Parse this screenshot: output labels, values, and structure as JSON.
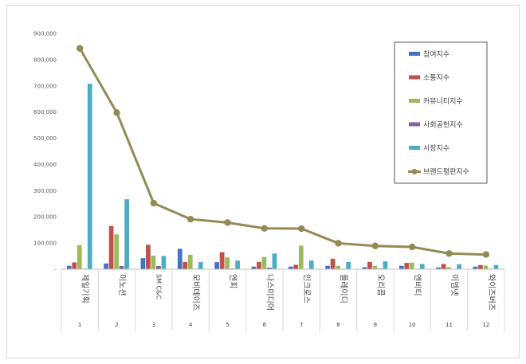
{
  "chart_data": {
    "type": "bar+line",
    "title": "",
    "xlabel": "",
    "ylabel": "",
    "ylim": [
      0,
      900000
    ],
    "yticks": [
      "-",
      "100,000",
      "200,000",
      "300,000",
      "400,000",
      "500,000",
      "600,000",
      "700,000",
      "800,000",
      "900,000"
    ],
    "legend_position": "right",
    "grid": false,
    "categories": [
      "제일기획",
      "이노션",
      "SM C&C",
      "모비데이즈",
      "엔피",
      "나스미디어",
      "인크로스",
      "플레이디",
      "오리콤",
      "엔비티",
      "이엠넷",
      "와이즈버즈"
    ],
    "ranks": [
      "1",
      "2",
      "3",
      "4",
      "5",
      "6",
      "7",
      "8",
      "9",
      "10",
      "11",
      "12"
    ],
    "series": [
      {
        "name": "참여지수",
        "color": "#4472c4",
        "values": [
          13000,
          22000,
          42000,
          78000,
          27000,
          10000,
          10000,
          13000,
          8000,
          13000,
          7000,
          10000
        ]
      },
      {
        "name": "소통지수",
        "color": "#c0504d",
        "values": [
          26000,
          165000,
          93000,
          28000,
          65000,
          28000,
          17000,
          40000,
          28000,
          24000,
          20000,
          16000
        ]
      },
      {
        "name": "커뮤니티지수",
        "color": "#9bbb59",
        "values": [
          92000,
          133000,
          52000,
          55000,
          45000,
          47000,
          90000,
          13000,
          13000,
          25000,
          8000,
          14000
        ]
      },
      {
        "name": "사회공헌지수",
        "color": "#8064a2",
        "values": [
          2000,
          12000,
          12000,
          2000,
          3000,
          6000,
          2000,
          2000,
          3000,
          2000,
          1000,
          2000
        ]
      },
      {
        "name": "시장지수",
        "color": "#4bacc6",
        "values": [
          708000,
          267000,
          51000,
          27000,
          33000,
          60000,
          33000,
          28000,
          30000,
          20000,
          19000,
          16000
        ]
      }
    ],
    "line": {
      "name": "브랜드평판지수",
      "color": "#948a54",
      "values": [
        843000,
        598000,
        252000,
        191000,
        178000,
        156000,
        155000,
        99000,
        89000,
        85000,
        60000,
        56000
      ]
    }
  }
}
